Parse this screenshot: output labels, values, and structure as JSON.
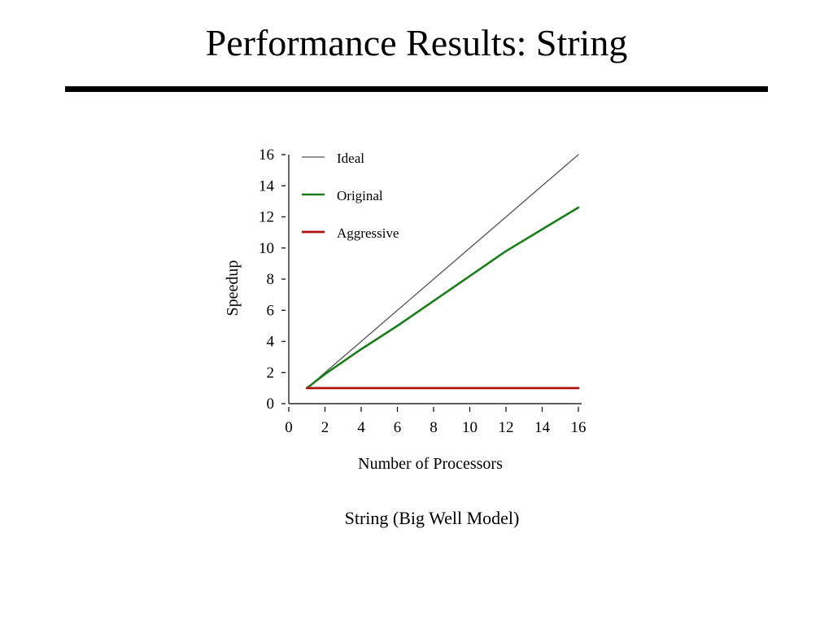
{
  "slide": {
    "title": "Performance Results: String",
    "caption": "String (Big Well Model)"
  },
  "colors": {
    "ideal": "#555555",
    "original": "#1a7f1a",
    "aggressive": "#b01010",
    "axis": "#000000"
  },
  "chart_data": {
    "type": "line",
    "title": "",
    "xlabel": "Number of Processors",
    "ylabel": "Speedup",
    "xlim": [
      0,
      16
    ],
    "ylim": [
      0,
      16
    ],
    "xticks": [
      0,
      2,
      4,
      6,
      8,
      10,
      12,
      14,
      16
    ],
    "yticks": [
      0,
      2,
      4,
      6,
      8,
      10,
      12,
      14,
      16
    ],
    "grid": false,
    "legend_position": "top-left",
    "series": [
      {
        "name": "Ideal",
        "color": "#555555",
        "x": [
          1,
          16
        ],
        "y": [
          1,
          16
        ]
      },
      {
        "name": "Original",
        "color": "#1a7f1a",
        "x": [
          1,
          2,
          4,
          6,
          8,
          10,
          12,
          14,
          16
        ],
        "y": [
          1,
          1.9,
          3.5,
          5.0,
          6.6,
          8.2,
          9.8,
          11.2,
          12.6
        ]
      },
      {
        "name": "Aggressive",
        "color": "#b01010",
        "x": [
          1,
          2,
          4,
          6,
          8,
          10,
          12,
          14,
          16
        ],
        "y": [
          1,
          1,
          1,
          1,
          1,
          1,
          1,
          1,
          1
        ]
      }
    ]
  }
}
